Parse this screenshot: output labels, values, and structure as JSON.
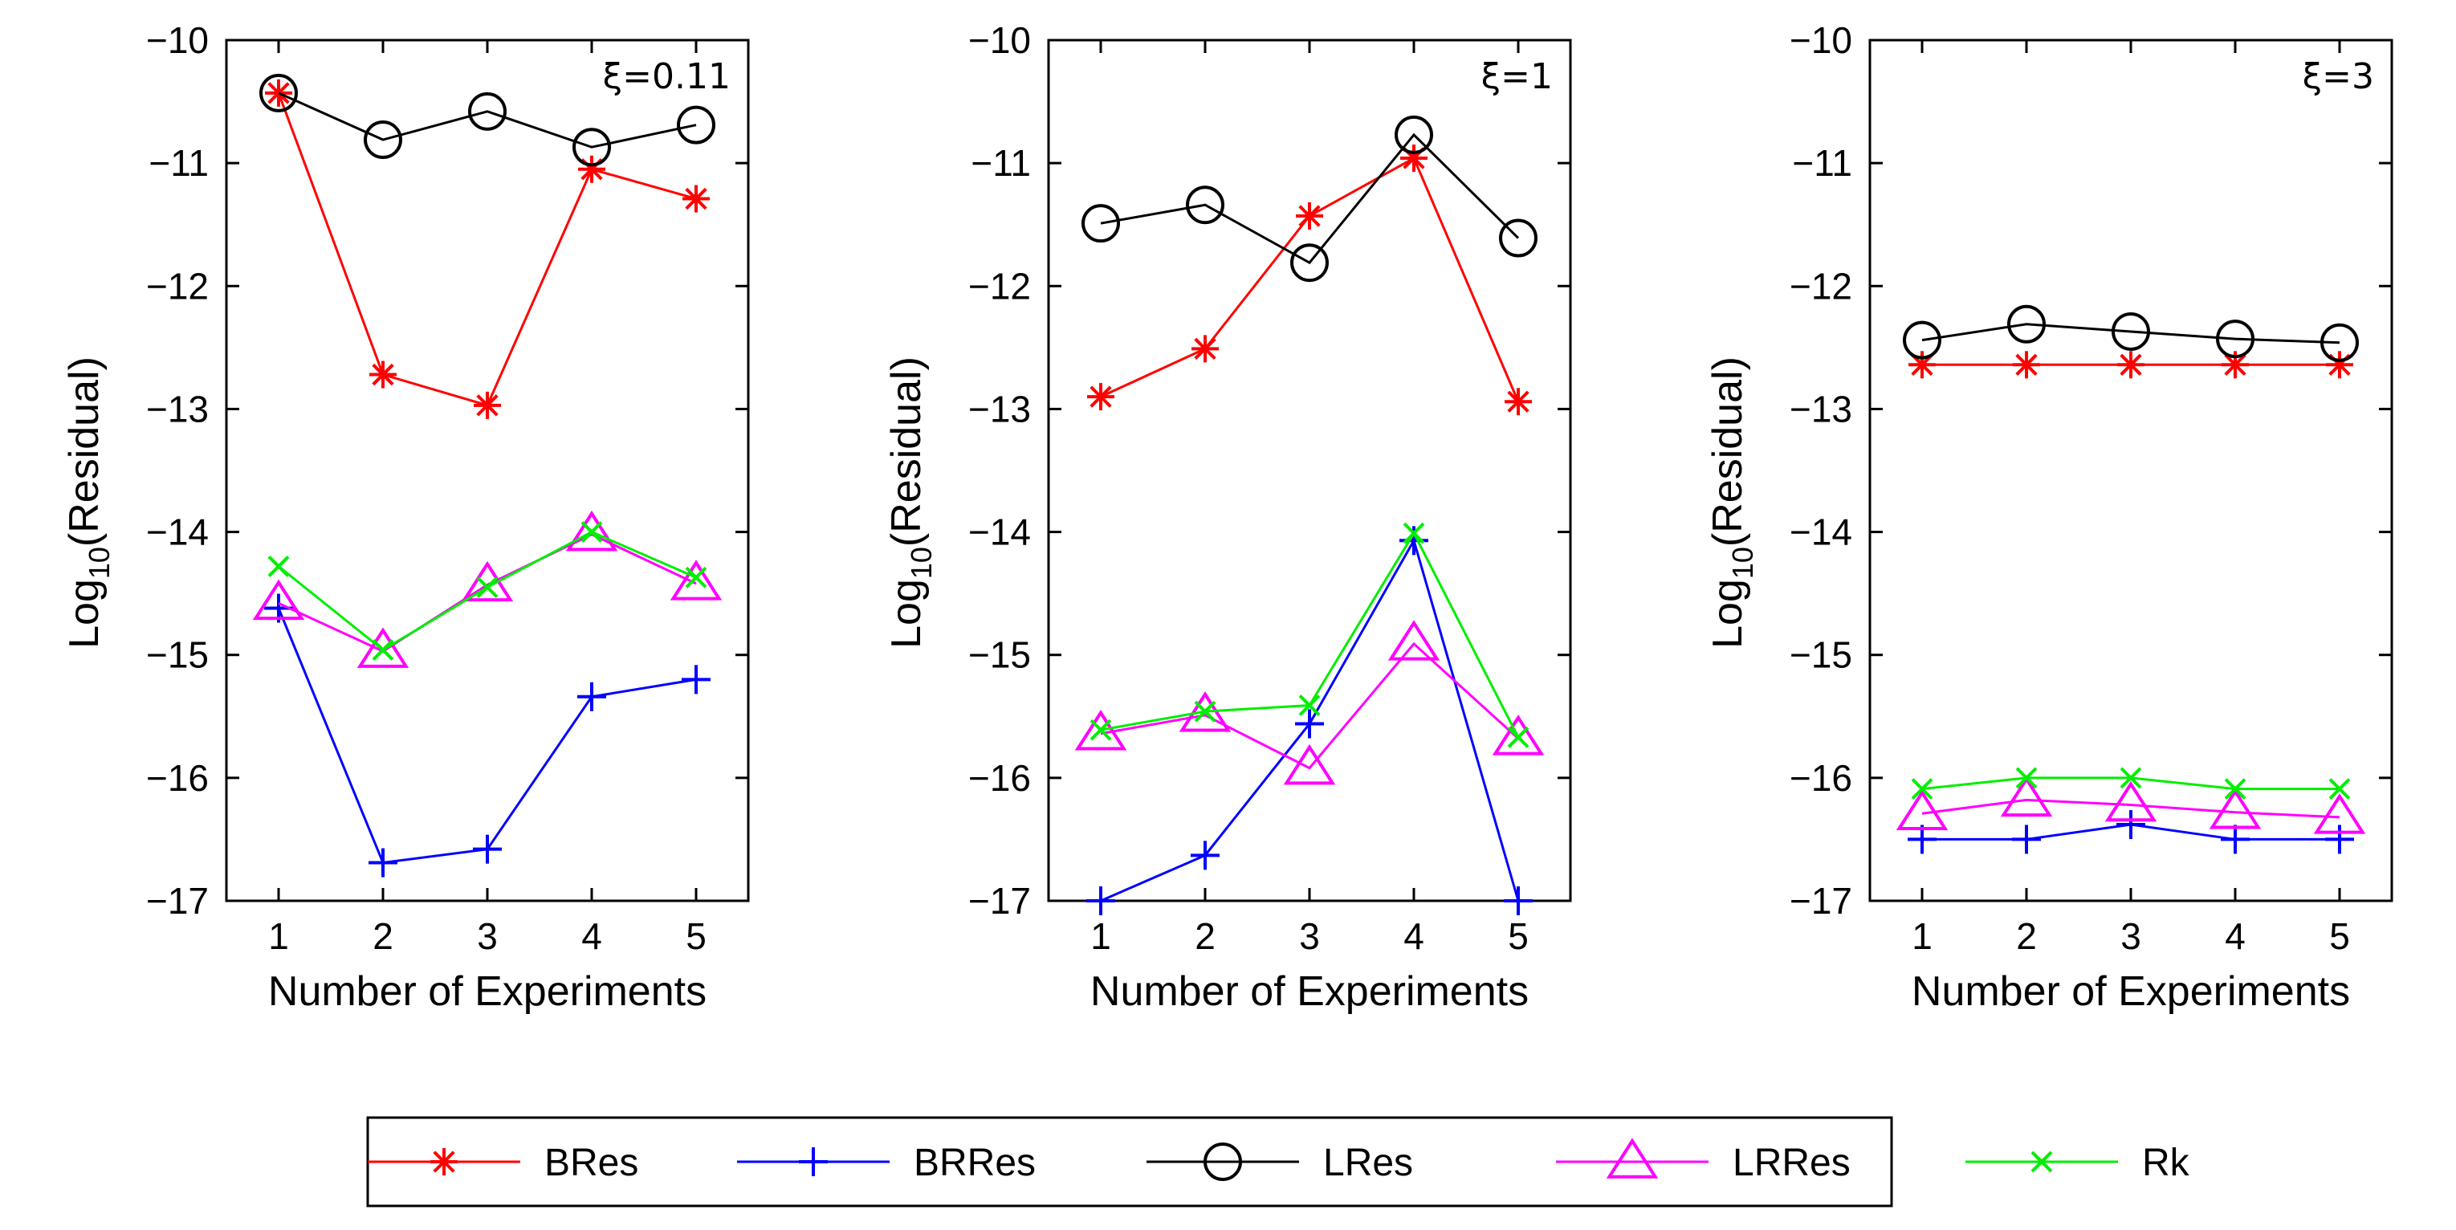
{
  "chart_data": [
    {
      "type": "line",
      "annotation": "ξ=0.11",
      "xlabel": "Number of Experiments",
      "ylabel_main": "Log",
      "ylabel_sub": "10",
      "ylabel_rest": "(Residual)",
      "x": [
        1,
        2,
        3,
        4,
        5
      ],
      "xlim": [
        0.5,
        5.5
      ],
      "ylim": [
        -17,
        -10
      ],
      "xticks": [
        "1",
        "2",
        "3",
        "4",
        "5"
      ],
      "yticks": [
        "−17",
        "−16",
        "−15",
        "−14",
        "−13",
        "−12",
        "−11",
        "−10"
      ],
      "series": [
        {
          "name": "BRes",
          "values": [
            -10.43,
            -12.72,
            -12.97,
            -11.05,
            -11.29
          ]
        },
        {
          "name": "BRRes",
          "values": [
            -14.62,
            -16.69,
            -16.58,
            -15.34,
            -15.2
          ]
        },
        {
          "name": "LRes",
          "values": [
            -10.43,
            -10.81,
            -10.58,
            -10.87,
            -10.69
          ]
        },
        {
          "name": "LRRes",
          "values": [
            -14.58,
            -14.97,
            -14.43,
            -14.02,
            -14.42
          ]
        },
        {
          "name": "Rk",
          "values": [
            -14.28,
            -14.96,
            -14.45,
            -14.0,
            -14.37
          ]
        }
      ]
    },
    {
      "type": "line",
      "annotation": "ξ=1",
      "xlabel": "Number of Experiments",
      "ylabel_main": "Log",
      "ylabel_sub": "10",
      "ylabel_rest": "(Residual)",
      "x": [
        1,
        2,
        3,
        4,
        5
      ],
      "xlim": [
        0.5,
        5.5
      ],
      "ylim": [
        -17,
        -10
      ],
      "xticks": [
        "1",
        "2",
        "3",
        "4",
        "5"
      ],
      "yticks": [
        "−17",
        "−16",
        "−15",
        "−14",
        "−13",
        "−12",
        "−11",
        "−10"
      ],
      "series": [
        {
          "name": "BRes",
          "values": [
            -12.9,
            -12.51,
            -11.43,
            -10.96,
            -12.94
          ]
        },
        {
          "name": "BRRes",
          "values": [
            -17.0,
            -16.63,
            -15.56,
            -14.07,
            -17.0
          ]
        },
        {
          "name": "LRes",
          "values": [
            -11.49,
            -11.34,
            -11.81,
            -10.77,
            -11.61
          ]
        },
        {
          "name": "LRRes",
          "values": [
            -15.64,
            -15.49,
            -15.92,
            -14.91,
            -15.68
          ]
        },
        {
          "name": "Rk",
          "values": [
            -15.61,
            -15.46,
            -15.41,
            -14.01,
            -15.67
          ]
        }
      ]
    },
    {
      "type": "line",
      "annotation": "ξ=3",
      "xlabel": "Number of Experiments",
      "ylabel_main": "Log",
      "ylabel_sub": "10",
      "ylabel_rest": "(Residual)",
      "x": [
        1,
        2,
        3,
        4,
        5
      ],
      "xlim": [
        0.5,
        5.5
      ],
      "ylim": [
        -17,
        -10
      ],
      "xticks": [
        "1",
        "2",
        "3",
        "4",
        "5"
      ],
      "yticks": [
        "−17",
        "−16",
        "−15",
        "−14",
        "−13",
        "−12",
        "−11",
        "−10"
      ],
      "series": [
        {
          "name": "BRes",
          "values": [
            -12.64,
            -12.64,
            -12.64,
            -12.64,
            -12.64
          ]
        },
        {
          "name": "BRRes",
          "values": [
            -16.5,
            -16.5,
            -16.38,
            -16.5,
            -16.5
          ]
        },
        {
          "name": "LRes",
          "values": [
            -12.44,
            -12.31,
            -12.37,
            -12.43,
            -12.46
          ]
        },
        {
          "name": "LRRes",
          "values": [
            -16.29,
            -16.18,
            -16.22,
            -16.28,
            -16.32
          ]
        },
        {
          "name": "Rk",
          "values": [
            -16.09,
            -16.0,
            -16.0,
            -16.09,
            -16.09
          ]
        }
      ]
    }
  ],
  "legend": {
    "placement": "bottom-center",
    "items": [
      {
        "name": "BRes",
        "color": "#ff0000",
        "marker": "asterisk"
      },
      {
        "name": "BRRes",
        "color": "#0000ff",
        "marker": "plus"
      },
      {
        "name": "LRes",
        "color": "#000000",
        "marker": "circle"
      },
      {
        "name": "LRRes",
        "color": "#ff00ff",
        "marker": "triangle"
      },
      {
        "name": "Rk",
        "color": "#00ee00",
        "marker": "x"
      }
    ]
  }
}
